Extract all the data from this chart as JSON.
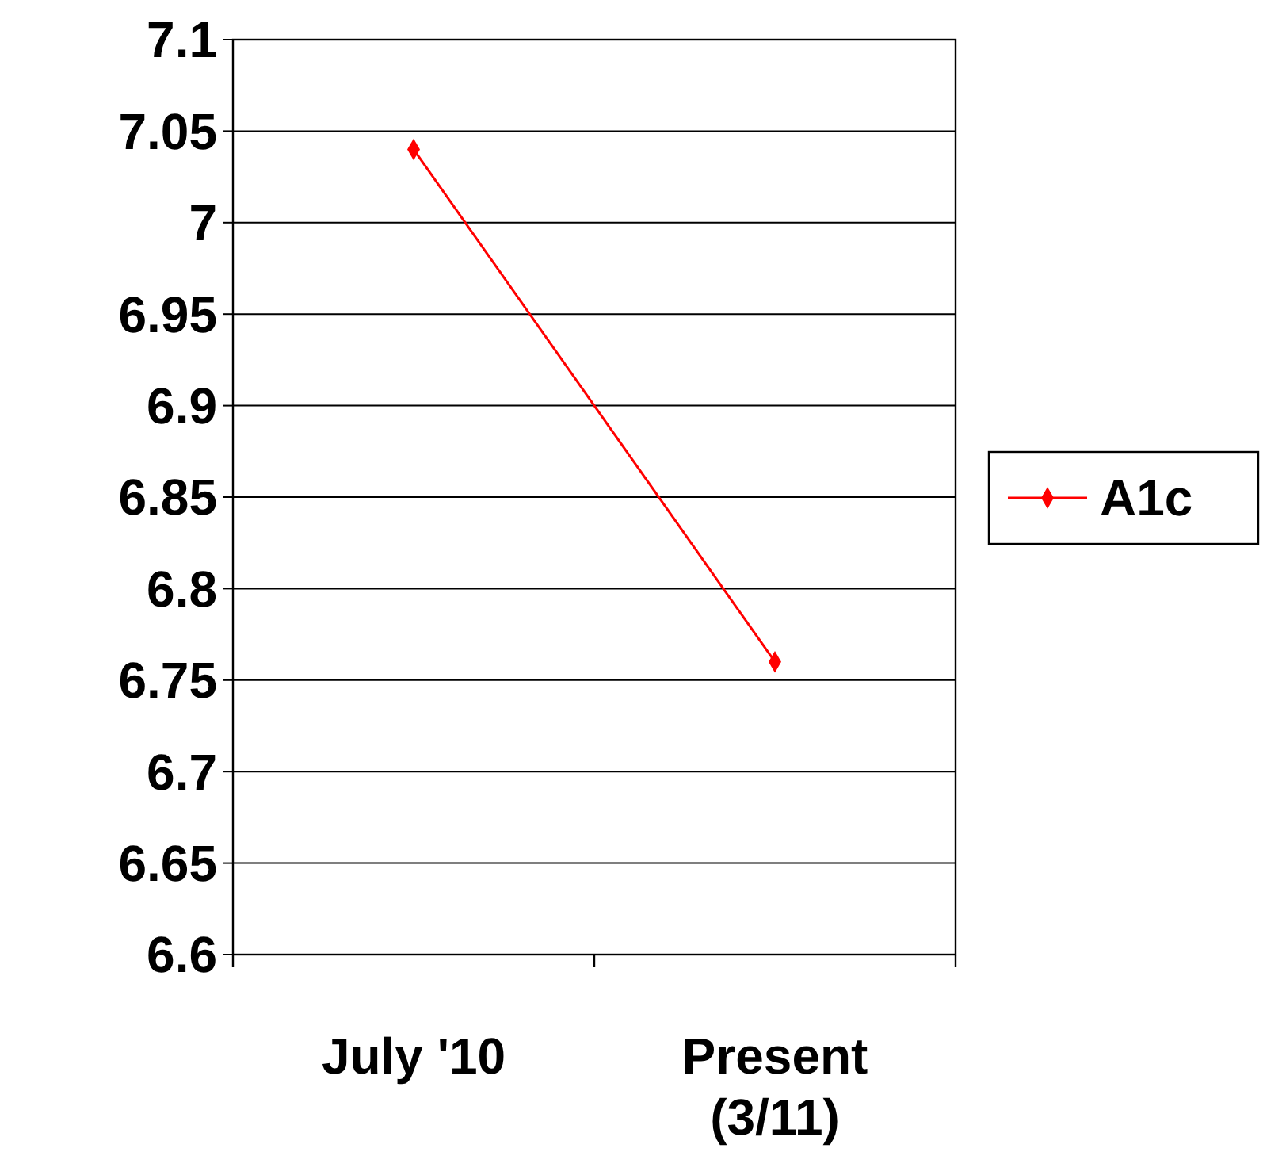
{
  "chart_data": {
    "type": "line",
    "categories": [
      "July '10",
      "Present (3/11)"
    ],
    "series": [
      {
        "name": "A1c",
        "color": "#ff0000",
        "values": [
          7.04,
          6.76
        ]
      }
    ],
    "ylim": [
      6.6,
      7.1
    ],
    "yticks": [
      6.6,
      6.65,
      6.7,
      6.75,
      6.8,
      6.85,
      6.9,
      6.95,
      7,
      7.05,
      7.1
    ],
    "grid": "y",
    "legend": "right",
    "marker": "diamond",
    "line_style": "solid"
  }
}
